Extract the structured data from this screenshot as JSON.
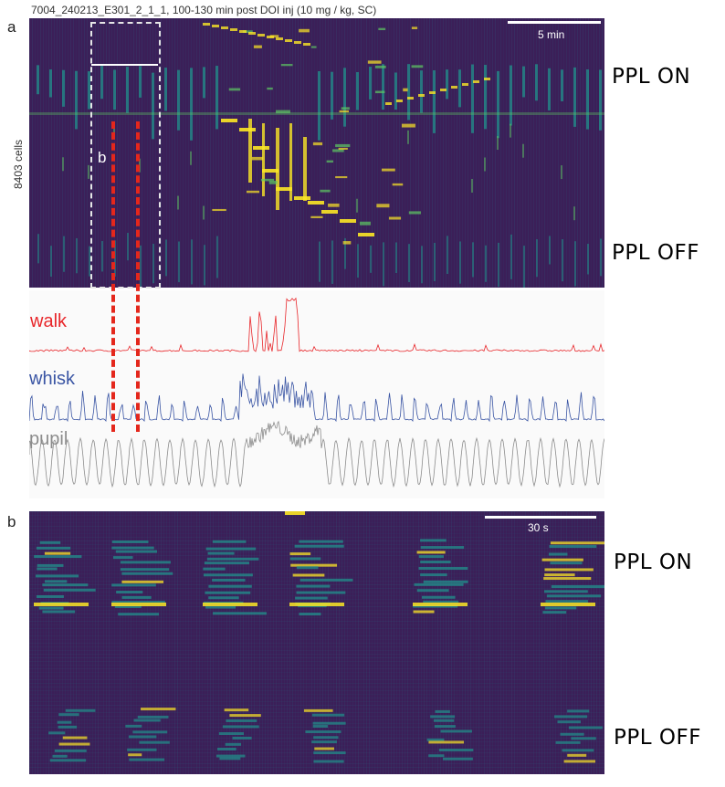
{
  "panel_a": {
    "letter": "a",
    "title": "7004_240213_E301_2_1_1, 100-130 min post DOI inj (10 mg / kg, SC)",
    "y_label": "8403 cells",
    "scale_bar_label": "5 min",
    "inset_label": "b",
    "ppl_on": "PPL ON",
    "ppl_off": "PPL OFF",
    "colors": {
      "heat_bg": "#3b1f58",
      "heat_mid": "#21918c",
      "heat_hi": "#fde725",
      "walk": "#e8262a",
      "whisk": "#3a55a4",
      "pupil": "#8c8c8c",
      "dash": "#e4271c"
    }
  },
  "traces": {
    "walk": "walk",
    "whisk": "whisk",
    "pupil": "pupil"
  },
  "panel_b": {
    "letter": "b",
    "scale_bar_label": "30 s",
    "ppl_on": "PPL ON",
    "ppl_off": "PPL OFF"
  }
}
